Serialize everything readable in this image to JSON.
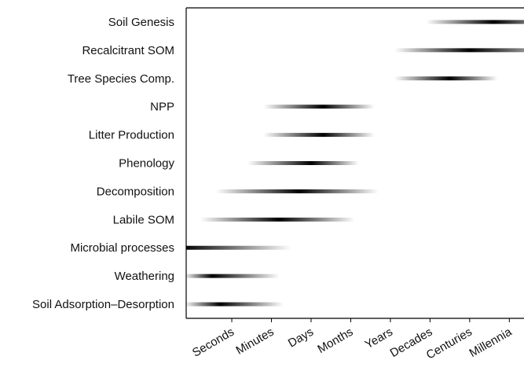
{
  "chart_data": {
    "type": "range-gradient",
    "categories": [
      "Soil Genesis",
      "Recalcitrant SOM",
      "Tree Species Comp.",
      "NPP",
      "Litter Production",
      "Phenology",
      "Decomposition",
      "Labile SOM",
      "Microbial processes",
      "Weathering",
      "Soil Adsorption–Desorption"
    ],
    "start": [
      4.9,
      4.1,
      4.1,
      0.8,
      0.8,
      0.4,
      -0.4,
      -0.8,
      -1.2,
      -1.2,
      -1.2
    ],
    "peak": [
      6.6,
      6.0,
      5.5,
      2.3,
      2.3,
      2.0,
      1.7,
      1.2,
      -1.2,
      -0.5,
      -0.3
    ],
    "end": [
      8.5,
      8.5,
      6.7,
      3.6,
      3.6,
      3.2,
      3.7,
      3.1,
      1.5,
      1.2,
      1.3
    ],
    "color": "#000000",
    "xlim": [
      -1.15,
      7.37
    ],
    "xticks": [
      {
        "value": 0,
        "label": "Seconds"
      },
      {
        "value": 1,
        "label": "Minutes"
      },
      {
        "value": 2,
        "label": "Days"
      },
      {
        "value": 3,
        "label": "Months"
      },
      {
        "value": 4,
        "label": "Years"
      },
      {
        "value": 5,
        "label": "Decades"
      },
      {
        "value": 6,
        "label": "Centuries"
      },
      {
        "value": 7,
        "label": "Millennia"
      }
    ]
  }
}
